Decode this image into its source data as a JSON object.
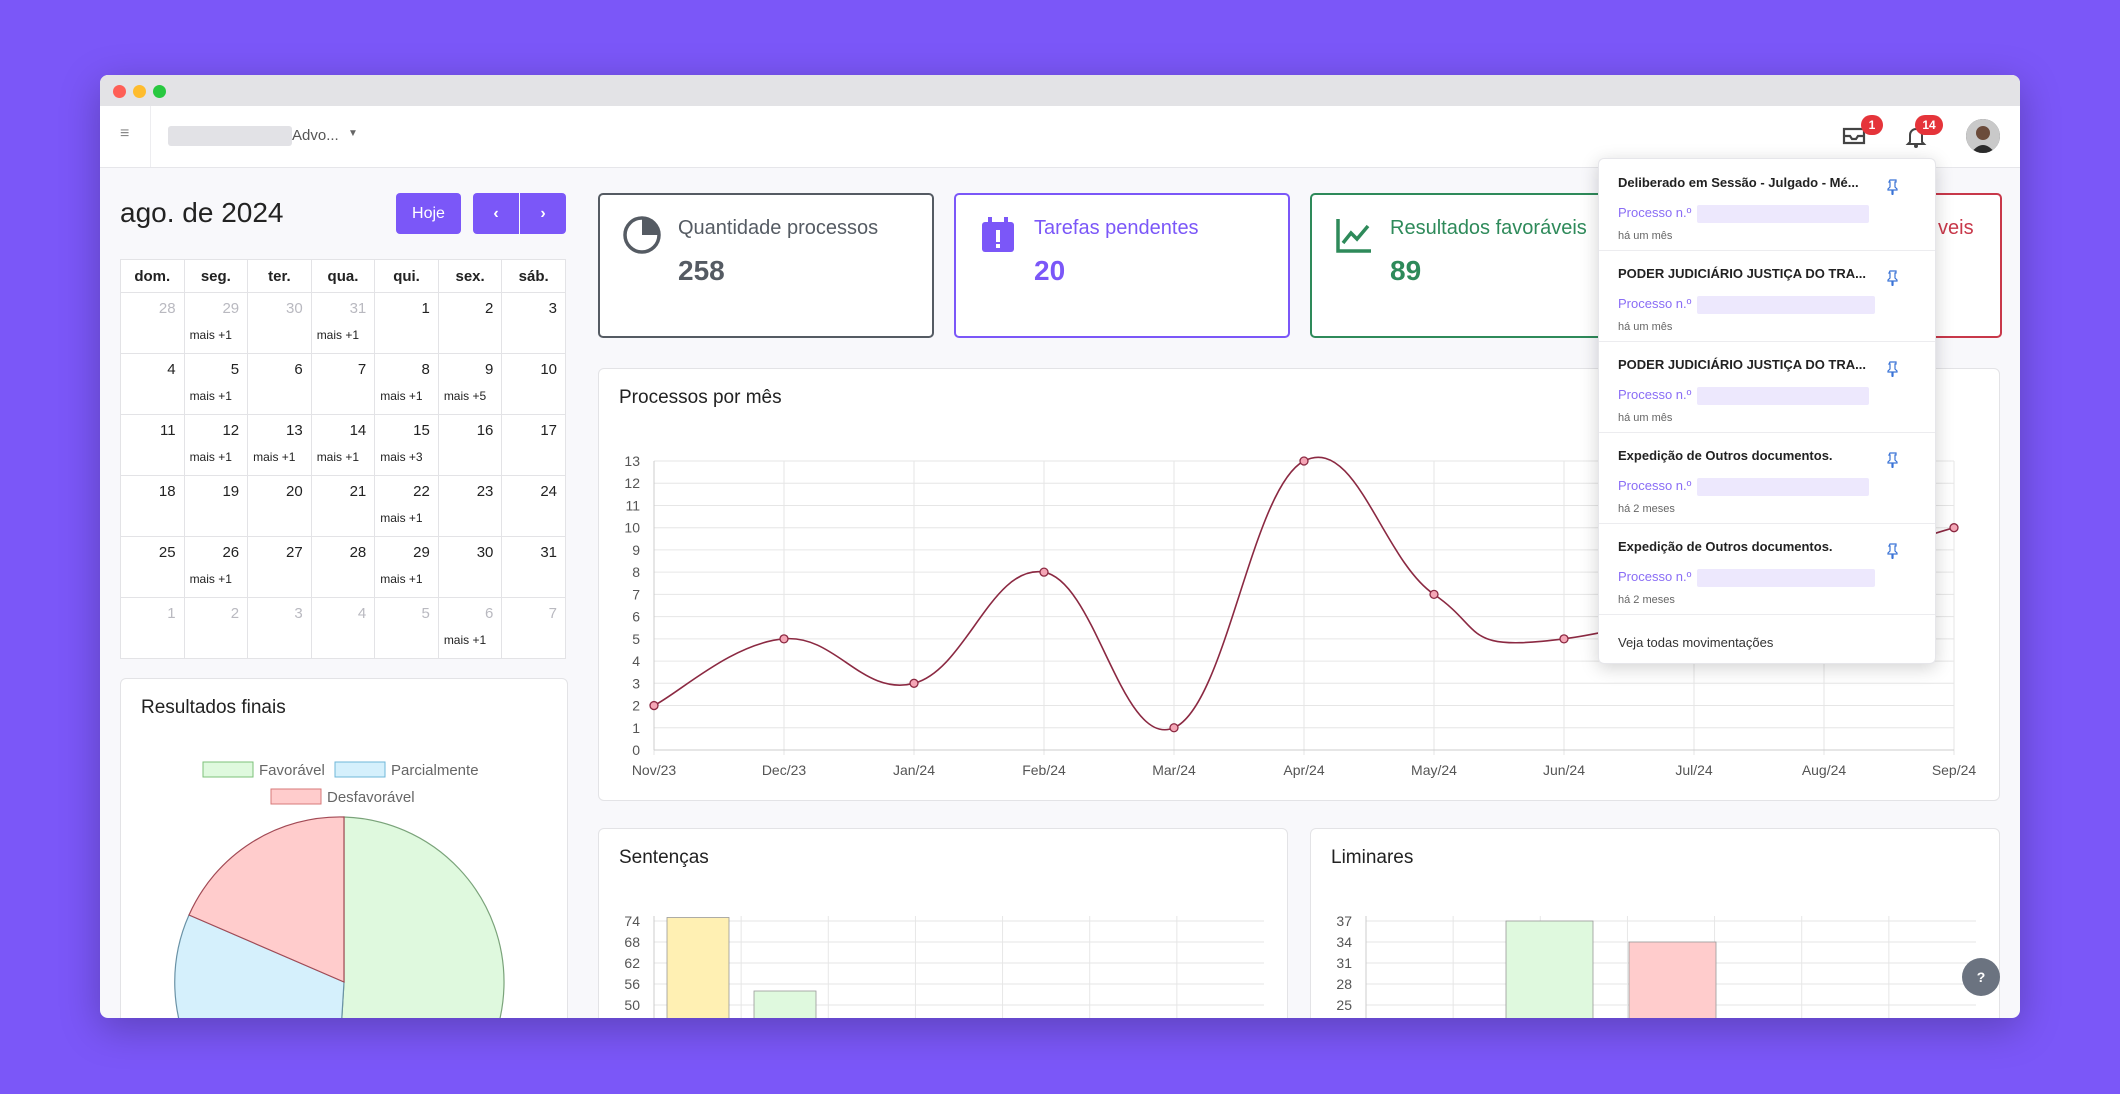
{
  "topbar": {
    "org_name": "Advo...",
    "inbox_badge": "1",
    "notif_badge": "14"
  },
  "calendar": {
    "title": "ago. de 2024",
    "today_button": "Hoje",
    "prev_icon": "‹",
    "next_icon": "›",
    "weekdays": [
      "dom.",
      "seg.",
      "ter.",
      "qua.",
      "qui.",
      "sex.",
      "sáb."
    ],
    "weeks": [
      [
        {
          "d": "28",
          "dim": true
        },
        {
          "d": "29",
          "dim": true,
          "more": "mais +1"
        },
        {
          "d": "30",
          "dim": true
        },
        {
          "d": "31",
          "dim": true,
          "more": "mais +1"
        },
        {
          "d": "1"
        },
        {
          "d": "2"
        },
        {
          "d": "3"
        }
      ],
      [
        {
          "d": "4"
        },
        {
          "d": "5",
          "more": "mais +1"
        },
        {
          "d": "6"
        },
        {
          "d": "7"
        },
        {
          "d": "8",
          "more": "mais +1"
        },
        {
          "d": "9",
          "more": "mais +5"
        },
        {
          "d": "10"
        }
      ],
      [
        {
          "d": "11"
        },
        {
          "d": "12",
          "more": "mais +1"
        },
        {
          "d": "13",
          "more": "mais +1"
        },
        {
          "d": "14",
          "more": "mais +1"
        },
        {
          "d": "15",
          "more": "mais +3"
        },
        {
          "d": "16"
        },
        {
          "d": "17"
        }
      ],
      [
        {
          "d": "18"
        },
        {
          "d": "19"
        },
        {
          "d": "20"
        },
        {
          "d": "21"
        },
        {
          "d": "22",
          "more": "mais +1"
        },
        {
          "d": "23"
        },
        {
          "d": "24"
        }
      ],
      [
        {
          "d": "25"
        },
        {
          "d": "26",
          "more": "mais +1"
        },
        {
          "d": "27"
        },
        {
          "d": "28"
        },
        {
          "d": "29",
          "more": "mais +1"
        },
        {
          "d": "30"
        },
        {
          "d": "31"
        }
      ],
      [
        {
          "d": "1",
          "dim": true
        },
        {
          "d": "2",
          "dim": true
        },
        {
          "d": "3",
          "dim": true
        },
        {
          "d": "4",
          "dim": true
        },
        {
          "d": "5",
          "dim": true
        },
        {
          "d": "6",
          "dim": true,
          "more": "mais +1"
        },
        {
          "d": "7",
          "dim": true
        }
      ]
    ]
  },
  "stats": [
    {
      "label": "Quantidade processos",
      "value": "258",
      "color": "#555b63",
      "icon": "pie-chart-icon"
    },
    {
      "label": "Tarefas pendentes",
      "value": "20",
      "color": "#7b57f8",
      "icon": "calendar-alert-icon"
    },
    {
      "label": "Resultados favoráveis",
      "value": "89",
      "color": "#2e8a5a",
      "icon": "chart-line-icon"
    },
    {
      "label": "veis",
      "value": "",
      "color": "#c8384a",
      "icon": "chart-icon"
    }
  ],
  "cards": {
    "processos_title": "Processos por mês",
    "resultados_title": "Resultados finais",
    "sentencas_title": "Sentenças",
    "liminares_title": "Liminares"
  },
  "pie_legend": [
    "Favorável",
    "Parcialmente",
    "Desfavorável"
  ],
  "chart_data": [
    {
      "type": "line",
      "title": "Processos por mês",
      "categories": [
        "Nov/23",
        "Dec/23",
        "Jan/24",
        "Feb/24",
        "Mar/24",
        "Apr/24",
        "May/24",
        "Jun/24",
        "Jul/24",
        "Aug/24",
        "Sep/24"
      ],
      "values": [
        2,
        5,
        3,
        8,
        1,
        13,
        7,
        5,
        null,
        null,
        10
      ],
      "ylim": [
        0,
        13
      ],
      "yticks": [
        0,
        1,
        2,
        3,
        4,
        5,
        6,
        7,
        8,
        9,
        10,
        11,
        12,
        13
      ],
      "line_color": "#8b2942",
      "grid": true
    },
    {
      "type": "pie",
      "title": "Resultados finais",
      "labels": [
        "Favorável",
        "Parcialmente",
        "Desfavorável"
      ],
      "colors": [
        "#dff9de",
        "#d5f0fc",
        "#ffcccc"
      ]
    },
    {
      "type": "bar",
      "title": "Sentenças",
      "yticks": [
        50,
        56,
        62,
        68,
        74
      ],
      "values": [
        75,
        54
      ],
      "colors": [
        "#fff0b3",
        "#dff9de"
      ]
    },
    {
      "type": "bar",
      "title": "Liminares",
      "yticks": [
        25,
        28,
        31,
        34,
        37
      ],
      "values": [
        37,
        34
      ],
      "colors": [
        "#dff9de",
        "#ffcccc"
      ]
    }
  ],
  "notifications": [
    {
      "title": "Deliberado em Sessão - Julgado - Mé...",
      "proc": "Processo n.º",
      "time": "há um mês"
    },
    {
      "title": "PODER JUDICIÁRIO JUSTIÇA DO TRA...",
      "proc": "Processo n.º",
      "time": "há um mês"
    },
    {
      "title": "PODER JUDICIÁRIO JUSTIÇA DO TRA...",
      "proc": "Processo n.º",
      "time": "há um mês"
    },
    {
      "title": "Expedição de Outros documentos.",
      "proc": "Processo n.º",
      "time": "há 2 meses"
    },
    {
      "title": "Expedição de Outros documentos.",
      "proc": "Processo n.º",
      "time": "há 2 meses"
    }
  ],
  "see_all": "Veja todas movimentações",
  "help_label": "?"
}
